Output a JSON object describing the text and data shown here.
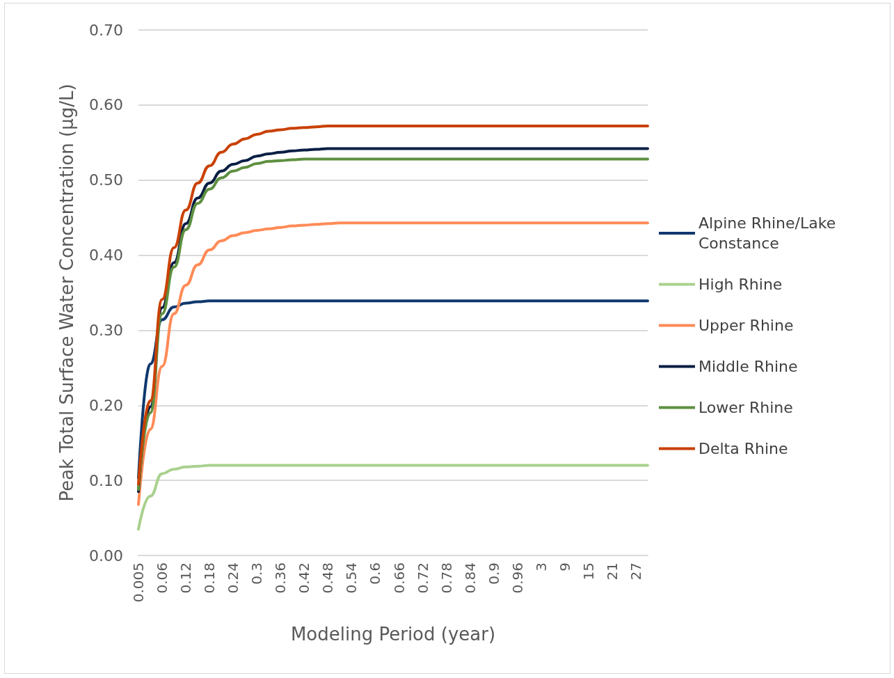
{
  "chart_data": {
    "type": "line",
    "xlabel": "Modeling Period (year)",
    "ylabel": "Peak Total Surface Water Concentration (µg/L)",
    "categories": [
      "0.005",
      null,
      "0.06",
      null,
      "0.12",
      null,
      "0.18",
      null,
      "0.24",
      null,
      "0.3",
      null,
      "0.36",
      null,
      "0.42",
      null,
      "0.48",
      null,
      "0.54",
      null,
      "0.6",
      null,
      "0.66",
      null,
      "0.72",
      null,
      "0.78",
      null,
      "0.84",
      null,
      "0.9",
      null,
      "0.96",
      null,
      "3",
      null,
      "9",
      null,
      "15",
      null,
      "21",
      null,
      "27",
      null
    ],
    "ylim": [
      0,
      0.7
    ],
    "yticks": [
      {
        "value": 0,
        "label": "0.00"
      },
      {
        "value": 0.1,
        "label": "0.10"
      },
      {
        "value": 0.2,
        "label": "0.20"
      },
      {
        "value": 0.3,
        "label": "0.30"
      },
      {
        "value": 0.4,
        "label": "0.40"
      },
      {
        "value": 0.5,
        "label": "0.50"
      },
      {
        "value": 0.6,
        "label": "0.60"
      },
      {
        "value": 0.7,
        "label": "0.70"
      }
    ],
    "grid": "y",
    "legend": "right",
    "marker": "none",
    "line_style": "solid",
    "series": [
      {
        "name": "Alpine Rhine/Lake Constance",
        "color": "#10386e",
        "values": [
          0.103,
          0.255,
          0.314,
          0.331,
          0.336,
          0.338,
          0.339,
          0.339,
          0.339,
          0.339,
          0.339,
          0.339,
          0.339,
          0.339,
          0.339,
          0.339,
          0.339,
          0.339,
          0.339,
          0.339,
          0.339,
          0.339,
          0.339,
          0.339,
          0.339,
          0.339,
          0.339,
          0.339,
          0.339,
          0.339,
          0.339,
          0.339,
          0.339,
          0.339,
          0.339,
          0.339,
          0.339,
          0.339,
          0.339,
          0.339,
          0.339,
          0.339,
          0.339,
          0.339
        ]
      },
      {
        "name": "High Rhine",
        "color": "#a9d18e",
        "values": [
          0.035,
          0.079,
          0.109,
          0.115,
          0.118,
          0.119,
          0.12,
          0.12,
          0.12,
          0.12,
          0.12,
          0.12,
          0.12,
          0.12,
          0.12,
          0.12,
          0.12,
          0.12,
          0.12,
          0.12,
          0.12,
          0.12,
          0.12,
          0.12,
          0.12,
          0.12,
          0.12,
          0.12,
          0.12,
          0.12,
          0.12,
          0.12,
          0.12,
          0.12,
          0.12,
          0.12,
          0.12,
          0.12,
          0.12,
          0.12,
          0.12,
          0.12,
          0.12,
          0.12
        ]
      },
      {
        "name": "Upper Rhine",
        "color": "#ff8b57",
        "values": [
          0.068,
          0.168,
          0.252,
          0.322,
          0.36,
          0.387,
          0.407,
          0.419,
          0.426,
          0.43,
          0.433,
          0.435,
          0.437,
          0.439,
          0.44,
          0.441,
          0.442,
          0.443,
          0.443,
          0.443,
          0.443,
          0.443,
          0.443,
          0.443,
          0.443,
          0.443,
          0.443,
          0.443,
          0.443,
          0.443,
          0.443,
          0.443,
          0.443,
          0.443,
          0.443,
          0.443,
          0.443,
          0.443,
          0.443,
          0.443,
          0.443,
          0.443,
          0.443,
          0.443
        ]
      },
      {
        "name": "Middle Rhine",
        "color": "#0b1f44",
        "values": [
          0.085,
          0.198,
          0.33,
          0.39,
          0.442,
          0.476,
          0.496,
          0.512,
          0.521,
          0.526,
          0.532,
          0.535,
          0.537,
          0.539,
          0.54,
          0.541,
          0.542,
          0.542,
          0.542,
          0.542,
          0.542,
          0.542,
          0.542,
          0.542,
          0.542,
          0.542,
          0.542,
          0.542,
          0.542,
          0.542,
          0.542,
          0.542,
          0.542,
          0.542,
          0.542,
          0.542,
          0.542,
          0.542,
          0.542,
          0.542,
          0.542,
          0.542,
          0.542,
          0.542
        ]
      },
      {
        "name": "Lower Rhine",
        "color": "#5e9040",
        "values": [
          0.088,
          0.19,
          0.322,
          0.384,
          0.434,
          0.469,
          0.488,
          0.503,
          0.512,
          0.517,
          0.522,
          0.525,
          0.526,
          0.527,
          0.528,
          0.528,
          0.528,
          0.528,
          0.528,
          0.528,
          0.528,
          0.528,
          0.528,
          0.528,
          0.528,
          0.528,
          0.528,
          0.528,
          0.528,
          0.528,
          0.528,
          0.528,
          0.528,
          0.528,
          0.528,
          0.528,
          0.528,
          0.528,
          0.528,
          0.528,
          0.528,
          0.528,
          0.528,
          0.528
        ]
      },
      {
        "name": "Delta Rhine",
        "color": "#c94102",
        "values": [
          0.095,
          0.206,
          0.341,
          0.41,
          0.46,
          0.496,
          0.519,
          0.537,
          0.548,
          0.555,
          0.561,
          0.565,
          0.567,
          0.569,
          0.57,
          0.571,
          0.572,
          0.572,
          0.572,
          0.572,
          0.572,
          0.572,
          0.572,
          0.572,
          0.572,
          0.572,
          0.572,
          0.572,
          0.572,
          0.572,
          0.572,
          0.572,
          0.572,
          0.572,
          0.572,
          0.572,
          0.572,
          0.572,
          0.572,
          0.572,
          0.572,
          0.572,
          0.572,
          0.572
        ]
      }
    ]
  }
}
